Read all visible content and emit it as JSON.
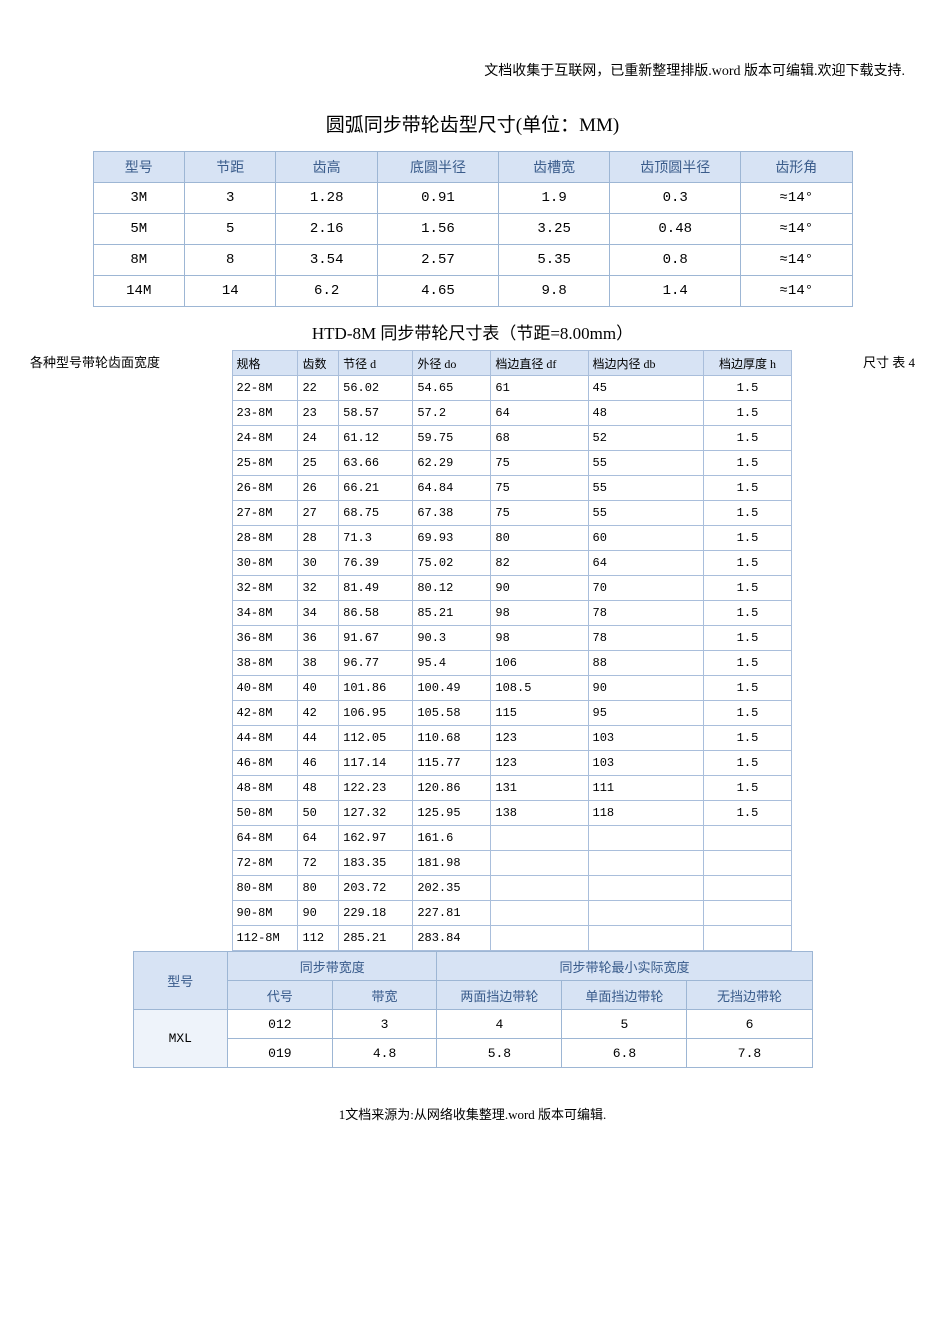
{
  "top_note": "文档收集于互联网，已重新整理排版.word 版本可编辑.欢迎下载支持.",
  "title1": "圆弧同步带轮齿型尺寸(单位：MM)",
  "title2": "HTD-8M 同步带轮尺寸表（节距=8.00mm）",
  "side_left": "各种型号带轮齿面宽度",
  "side_right": "尺寸 表 4",
  "footer": "1文档来源为:从网络收集整理.word 版本可编辑.",
  "table1": {
    "headers": [
      "型号",
      "节距",
      "齿高",
      "底圆半径",
      "齿槽宽",
      "齿顶圆半径",
      "齿形角"
    ],
    "rows": [
      [
        "3M",
        "3",
        "1.28",
        "0.91",
        "1.9",
        "0.3",
        "≈14°"
      ],
      [
        "5M",
        "5",
        "2.16",
        "1.56",
        "3.25",
        "0.48",
        "≈14°"
      ],
      [
        "8M",
        "8",
        "3.54",
        "2.57",
        "5.35",
        "0.8",
        "≈14°"
      ],
      [
        "14M",
        "14",
        "6.2",
        "4.65",
        "9.8",
        "1.4",
        "≈14°"
      ]
    ],
    "col_widths": [
      "90",
      "90",
      "100",
      "120",
      "110",
      "130",
      "110"
    ],
    "header_bg": "#d7e3f4",
    "header_color": "#3a5c8b",
    "border_color": "#9db6d4"
  },
  "table2": {
    "headers": [
      "规格",
      "齿数",
      "节径 d",
      "外径 do",
      "档边直径 df",
      "档边内径 db",
      "档边厚度 h"
    ],
    "rows": [
      [
        "22-8M",
        "22",
        "56.02",
        "54.65",
        "61",
        "45",
        "1.5"
      ],
      [
        "23-8M",
        "23",
        "58.57",
        "57.2",
        "64",
        "48",
        "1.5"
      ],
      [
        "24-8M",
        "24",
        "61.12",
        "59.75",
        "68",
        "52",
        "1.5"
      ],
      [
        "25-8M",
        "25",
        "63.66",
        "62.29",
        "75",
        "55",
        "1.5"
      ],
      [
        "26-8M",
        "26",
        "66.21",
        "64.84",
        "75",
        "55",
        "1.5"
      ],
      [
        "27-8M",
        "27",
        "68.75",
        "67.38",
        "75",
        "55",
        "1.5"
      ],
      [
        "28-8M",
        "28",
        "71.3",
        "69.93",
        "80",
        "60",
        "1.5"
      ],
      [
        "30-8M",
        "30",
        "76.39",
        "75.02",
        "82",
        "64",
        "1.5"
      ],
      [
        "32-8M",
        "32",
        "81.49",
        "80.12",
        "90",
        "70",
        "1.5"
      ],
      [
        "34-8M",
        "34",
        "86.58",
        "85.21",
        "98",
        "78",
        "1.5"
      ],
      [
        "36-8M",
        "36",
        "91.67",
        "90.3",
        "98",
        "78",
        "1.5"
      ],
      [
        "38-8M",
        "38",
        "96.77",
        "95.4",
        "106",
        "88",
        "1.5"
      ],
      [
        "40-8M",
        "40",
        "101.86",
        "100.49",
        "108.5",
        "90",
        "1.5"
      ],
      [
        "42-8M",
        "42",
        "106.95",
        "105.58",
        "115",
        "95",
        "1.5"
      ],
      [
        "44-8M",
        "44",
        "112.05",
        "110.68",
        "123",
        "103",
        "1.5"
      ],
      [
        "46-8M",
        "46",
        "117.14",
        "115.77",
        "123",
        "103",
        "1.5"
      ],
      [
        "48-8M",
        "48",
        "122.23",
        "120.86",
        "131",
        "111",
        "1.5"
      ],
      [
        "50-8M",
        "50",
        "127.32",
        "125.95",
        "138",
        "118",
        "1.5"
      ],
      [
        "64-8M",
        "64",
        "162.97",
        "161.6",
        "",
        "",
        ""
      ],
      [
        "72-8M",
        "72",
        "183.35",
        "181.98",
        "",
        "",
        ""
      ],
      [
        "80-8M",
        "80",
        "203.72",
        "202.35",
        "",
        "",
        ""
      ],
      [
        "90-8M",
        "90",
        "229.18",
        "227.81",
        "",
        "",
        ""
      ],
      [
        "112-8M",
        "112",
        "285.21",
        "283.84",
        "",
        "",
        ""
      ]
    ]
  },
  "table3": {
    "h_model": "型号",
    "h_belt_width": "同步带宽度",
    "h_min_width": "同步带轮最小实际宽度",
    "h_code": "代号",
    "h_width": "带宽",
    "h_two_side": "两面挡边带轮",
    "h_one_side": "单面挡边带轮",
    "h_no_side": "无挡边带轮",
    "model": "MXL",
    "row1": [
      "012",
      "3",
      "4",
      "5",
      "6"
    ],
    "row2": [
      "019",
      "4.8",
      "5.8",
      "6.8",
      "7.8"
    ]
  }
}
